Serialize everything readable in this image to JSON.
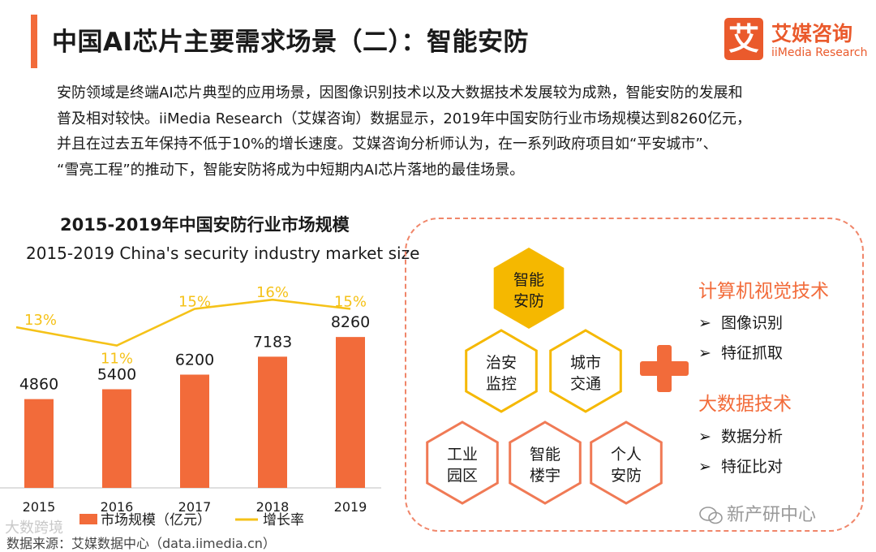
{
  "header": {
    "title": "中国AI芯片主要需求场景（二）：智能安防",
    "brand_logo_char": "艾",
    "brand_name": "艾媒咨询",
    "brand_sub": "iiMedia Research"
  },
  "intro": {
    "lines": [
      "安防领域是终端AI芯片典型的应用场景，因图像识别技术以及大数据技术发展较为成熟，智能安防的发展和",
      "普及相对较快。iiMedia Research（艾媒咨询）数据显示，2019年中国安防行业市场规模达到8260亿元，",
      "并且在过去五年保持不低于10%的增长速度。艾媒咨询分析师认为，在一系列政府项目如“平安城市”、",
      "“雪亮工程”的推动下，智能安防将成为中短期内AI芯片落地的最佳场景。"
    ]
  },
  "chart_data": {
    "type": "bar",
    "title": "2015-2019年中国安防行业市场规模",
    "subtitle": "2015-2019 China's security industry market size",
    "categories": [
      "2015",
      "2016",
      "2017",
      "2018",
      "2019"
    ],
    "series": [
      {
        "name": "市场规模（亿元）",
        "type": "bar",
        "values": [
          4860,
          5400,
          6200,
          7183,
          8260
        ],
        "labels": [
          "4860",
          "5400",
          "6200",
          "7183",
          "8260"
        ],
        "color": "#f26b3a"
      },
      {
        "name": "增长率",
        "type": "line",
        "values": [
          13,
          11,
          15,
          16,
          15
        ],
        "labels": [
          "13%",
          "11%",
          "15%",
          "16%",
          "15%"
        ],
        "color": "#f5c218"
      }
    ],
    "ylim_bar": [
      0,
      10000
    ],
    "ylim_line": [
      0,
      20
    ],
    "legend": "bottom"
  },
  "diagram": {
    "hexagons": [
      {
        "line1": "智能",
        "line2": "安防",
        "style": "filled"
      },
      {
        "line1": "治安",
        "line2": "监控",
        "style": "yellow"
      },
      {
        "line1": "城市",
        "line2": "交通",
        "style": "yellow"
      },
      {
        "line1": "工业",
        "line2": "园区",
        "style": "orange"
      },
      {
        "line1": "智能",
        "line2": "楼宇",
        "style": "orange"
      },
      {
        "line1": "个人",
        "line2": "安防",
        "style": "orange"
      }
    ],
    "tech_groups": [
      {
        "title": "计算机视觉技术",
        "items": [
          "图像识别",
          "特征抓取"
        ]
      },
      {
        "title": "大数据技术",
        "items": [
          "数据分析",
          "特征比对"
        ]
      }
    ],
    "arrow_glyph": "➢"
  },
  "footer": {
    "source": "数据来源：艾媒数据中心（data.iimedia.cn）",
    "watermark_left": "大数跨境",
    "watermark_right": "新产研中心"
  },
  "colors": {
    "accent": "#f26b3a",
    "line": "#f5c218",
    "hex_yellow": "#f5b800",
    "hex_orange": "#f07a55"
  }
}
